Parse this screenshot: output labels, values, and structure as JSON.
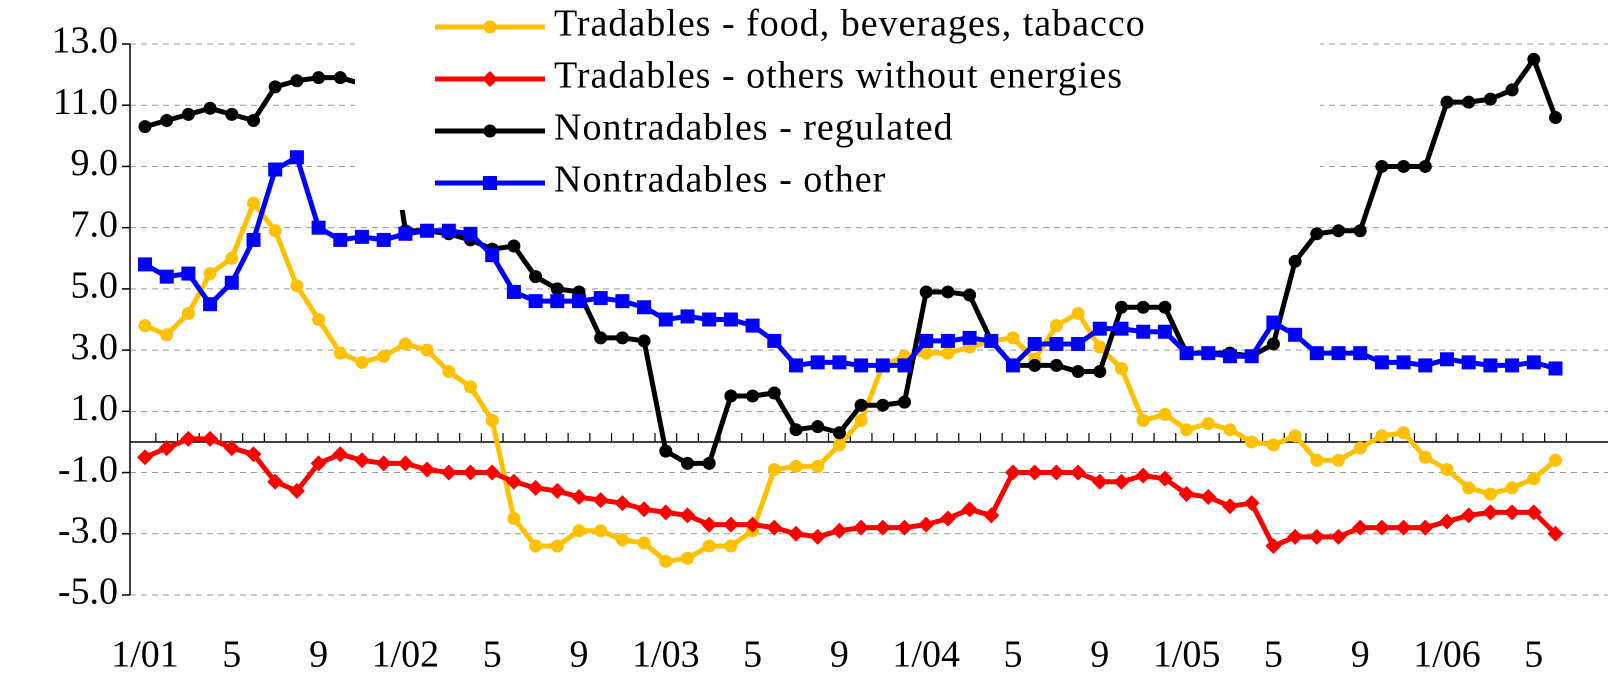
{
  "chart_data": {
    "type": "line",
    "categories": [
      "1/01",
      null,
      null,
      null,
      "5",
      null,
      null,
      null,
      "9",
      null,
      null,
      null,
      "1/02",
      null,
      null,
      null,
      "5",
      null,
      null,
      null,
      "9",
      null,
      null,
      null,
      "1/03",
      null,
      null,
      null,
      "5",
      null,
      null,
      null,
      "9",
      null,
      null,
      null,
      "1/04",
      null,
      null,
      null,
      "5",
      null,
      null,
      null,
      "9",
      null,
      null,
      null,
      "1/05",
      null,
      null,
      null,
      "5",
      null,
      null,
      null,
      "9",
      null,
      null,
      null,
      "1/06",
      null,
      null,
      null,
      "5",
      null
    ],
    "series": [
      {
        "name": "Tradables - food, beverages, tabacco",
        "color": "#ffc000",
        "marker": "circle",
        "values": [
          3.8,
          3.5,
          4.2,
          5.5,
          6.0,
          7.8,
          6.9,
          5.1,
          4.0,
          2.9,
          2.6,
          2.8,
          3.2,
          3.0,
          2.3,
          1.8,
          0.7,
          -2.5,
          -3.4,
          -3.4,
          -2.9,
          -2.9,
          -3.2,
          -3.3,
          -3.9,
          -3.8,
          -3.4,
          -3.4,
          -2.9,
          -0.9,
          -0.8,
          -0.8,
          -0.1,
          0.7,
          2.5,
          2.8,
          2.9,
          2.9,
          3.1,
          3.3,
          3.4,
          2.7,
          3.8,
          4.2,
          3.1,
          2.4,
          0.7,
          0.9,
          0.4,
          0.6,
          0.4,
          0.0,
          -0.1,
          0.2,
          -0.6,
          -0.6,
          -0.2,
          0.2,
          0.3,
          -0.5,
          -0.9,
          -1.5,
          -1.7,
          -1.5,
          -1.2,
          -0.6
        ]
      },
      {
        "name": "Tradables - others without energies",
        "color": "#ff0000",
        "marker": "diamond",
        "values": [
          -0.5,
          -0.2,
          0.1,
          0.1,
          -0.2,
          -0.4,
          -1.3,
          -1.6,
          -0.7,
          -0.4,
          -0.6,
          -0.7,
          -0.7,
          -0.9,
          -1.0,
          -1.0,
          -1.0,
          -1.3,
          -1.5,
          -1.6,
          -1.8,
          -1.9,
          -2.0,
          -2.2,
          -2.3,
          -2.4,
          -2.7,
          -2.7,
          -2.7,
          -2.8,
          -3.0,
          -3.1,
          -2.9,
          -2.8,
          -2.8,
          -2.8,
          -2.7,
          -2.5,
          -2.2,
          -2.4,
          -1.0,
          -1.0,
          -1.0,
          -1.0,
          -1.3,
          -1.3,
          -1.1,
          -1.2,
          -1.7,
          -1.8,
          -2.1,
          -2.0,
          -3.4,
          -3.1,
          -3.1,
          -3.1,
          -2.8,
          -2.8,
          -2.8,
          -2.8,
          -2.6,
          -2.4,
          -2.3,
          -2.3,
          -2.3,
          -3.0
        ]
      },
      {
        "name": "Nontradables - regulated",
        "color": "#000000",
        "marker": "circle",
        "values": [
          10.3,
          10.5,
          10.7,
          10.9,
          10.7,
          10.5,
          11.6,
          11.8,
          11.9,
          11.9,
          11.7,
          11.6,
          6.9,
          6.9,
          6.8,
          6.6,
          6.3,
          6.4,
          5.4,
          5.0,
          4.9,
          3.4,
          3.4,
          3.3,
          -0.3,
          -0.7,
          -0.7,
          1.5,
          1.5,
          1.6,
          0.4,
          0.5,
          0.3,
          1.2,
          1.2,
          1.3,
          4.9,
          4.9,
          4.8,
          3.3,
          2.5,
          2.5,
          2.5,
          2.3,
          2.3,
          4.4,
          4.4,
          4.4,
          2.9,
          2.9,
          2.9,
          2.8,
          3.2,
          5.9,
          6.8,
          6.9,
          6.9,
          9.0,
          9.0,
          9.0,
          11.1,
          11.1,
          11.2,
          11.5,
          12.5,
          10.6
        ]
      },
      {
        "name": "Nontradables - other",
        "color": "#0000ff",
        "marker": "square",
        "values": [
          5.8,
          5.4,
          5.5,
          4.5,
          5.2,
          6.6,
          8.9,
          9.3,
          7.0,
          6.6,
          6.7,
          6.6,
          6.8,
          6.9,
          6.9,
          6.8,
          6.1,
          4.9,
          4.6,
          4.6,
          4.6,
          4.7,
          4.6,
          4.4,
          4.0,
          4.1,
          4.0,
          4.0,
          3.8,
          3.3,
          2.5,
          2.6,
          2.6,
          2.5,
          2.5,
          2.5,
          3.3,
          3.3,
          3.4,
          3.3,
          2.5,
          3.2,
          3.2,
          3.2,
          3.7,
          3.7,
          3.6,
          3.6,
          2.9,
          2.9,
          2.8,
          2.8,
          3.9,
          3.5,
          2.9,
          2.9,
          2.9,
          2.6,
          2.6,
          2.5,
          2.7,
          2.6,
          2.5,
          2.5,
          2.6,
          2.4
        ]
      }
    ],
    "ylim": [
      -5,
      13
    ],
    "yticks": [
      {
        "value": 13,
        "label": "13.0"
      },
      {
        "value": 11,
        "label": "11.0"
      },
      {
        "value": 9,
        "label": "9.0"
      },
      {
        "value": 7,
        "label": "7.0"
      },
      {
        "value": 5,
        "label": "5.0"
      },
      {
        "value": 3,
        "label": "3.0"
      },
      {
        "value": 1,
        "label": "1.0"
      },
      {
        "value": -1,
        "label": "-1.0"
      },
      {
        "value": -3,
        "label": "-3.0"
      },
      {
        "value": -5,
        "label": "-5.0"
      }
    ],
    "grid": true,
    "legend": "top"
  }
}
